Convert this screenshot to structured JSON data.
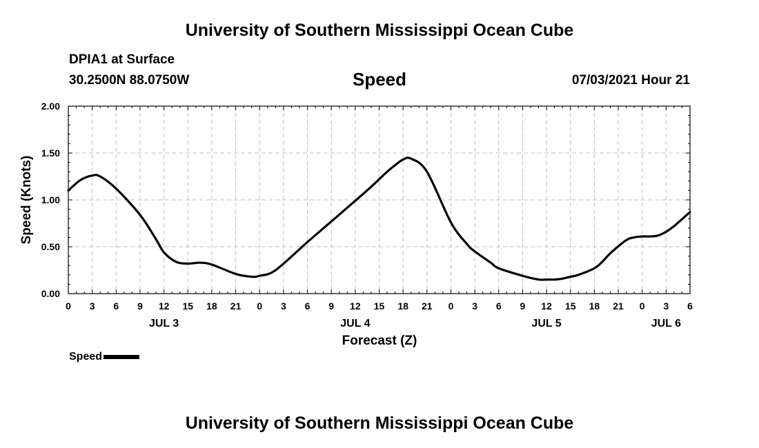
{
  "header": {
    "title": "University of Southern Mississippi Ocean Cube",
    "station": "DPIA1 at Surface",
    "coordinates": "30.2500N  88.0750W",
    "datetime": "07/03/2021 Hour 21"
  },
  "footer": {
    "title": "University of Southern Mississippi Ocean Cube"
  },
  "legend": {
    "label": "Speed"
  },
  "colors": {
    "line": "#000000",
    "grid": "#bfbfbf",
    "axis": "#000000"
  },
  "chart_data": {
    "type": "line",
    "title": "Speed",
    "xlabel": "Forecast (Z)",
    "ylabel": "Speed (Knots)",
    "xlim": [
      0,
      78
    ],
    "ylim": [
      0,
      2
    ],
    "grid": true,
    "legend_position": "bottom-left",
    "xticks": [
      0,
      3,
      6,
      9,
      12,
      15,
      18,
      21,
      24,
      27,
      30,
      33,
      36,
      39,
      42,
      45,
      48,
      51,
      54,
      57,
      60,
      63,
      66,
      69,
      72,
      75,
      78
    ],
    "xtick_labels": [
      "0",
      "3",
      "6",
      "9",
      "12",
      "15",
      "18",
      "21",
      "0",
      "3",
      "6",
      "9",
      "12",
      "15",
      "18",
      "21",
      "0",
      "3",
      "6",
      "9",
      "12",
      "15",
      "18",
      "21",
      "0",
      "3",
      "6"
    ],
    "day_labels": [
      {
        "x": 12,
        "label": "JUL 3"
      },
      {
        "x": 36,
        "label": "JUL 4"
      },
      {
        "x": 60,
        "label": "JUL 5"
      },
      {
        "x": 75,
        "label": "JUL 6"
      }
    ],
    "yticks": [
      0,
      0.5,
      1,
      1.5,
      2
    ],
    "ytick_labels": [
      "0.00",
      "0.50",
      "1.00",
      "1.50",
      "2.00"
    ],
    "series": [
      {
        "name": "Speed",
        "x": [
          0,
          1.5,
          3,
          4,
          6,
          9,
          11,
          12,
          13.5,
          15,
          16.5,
          18,
          21,
          23,
          24,
          26,
          30,
          33,
          36,
          38,
          40,
          41,
          42,
          43,
          45,
          48,
          50,
          51,
          53,
          54,
          57,
          59,
          60,
          61,
          62,
          63,
          64,
          66,
          67,
          68,
          70,
          71,
          72,
          73,
          74,
          75,
          76,
          78
        ],
        "y": [
          1.1,
          1.21,
          1.26,
          1.25,
          1.12,
          0.84,
          0.58,
          0.44,
          0.34,
          0.32,
          0.33,
          0.31,
          0.21,
          0.18,
          0.19,
          0.25,
          0.55,
          0.77,
          0.99,
          1.14,
          1.3,
          1.37,
          1.43,
          1.44,
          1.3,
          0.76,
          0.53,
          0.45,
          0.33,
          0.27,
          0.19,
          0.15,
          0.15,
          0.15,
          0.16,
          0.18,
          0.2,
          0.27,
          0.34,
          0.43,
          0.57,
          0.6,
          0.61,
          0.61,
          0.62,
          0.66,
          0.72,
          0.87
        ]
      }
    ]
  }
}
